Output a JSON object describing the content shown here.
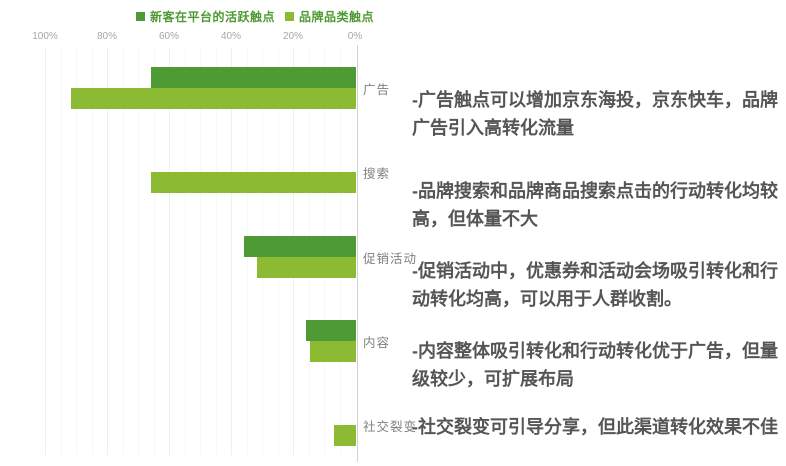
{
  "legend": {
    "items": [
      {
        "label": "新客在平台的活跃触点",
        "color": "#4e9a34"
      },
      {
        "label": "品牌品类触点",
        "color": "#8cbb33"
      }
    ],
    "text_color": "#4e9a34"
  },
  "chart_data": {
    "type": "bar",
    "orientation": "horizontal",
    "title": "",
    "xlabel": "",
    "ylabel": "",
    "axis": {
      "tick_labels": [
        "100%",
        "80%",
        "60%",
        "40%",
        "20%",
        "0%"
      ],
      "min": 0,
      "max": 100,
      "direction": "right-to-left",
      "grid": "on",
      "unit": "%"
    },
    "categories": [
      "广告",
      "搜索",
      "促销活动",
      "内容",
      "社交裂变"
    ],
    "series": [
      {
        "name": "新客在平台的活跃触点",
        "color": "#4e9a34",
        "values": [
          66,
          0,
          36,
          16,
          0
        ]
      },
      {
        "name": "品牌品类触点",
        "color": "#8cbb33",
        "values": [
          92,
          66,
          32,
          15,
          7
        ]
      }
    ],
    "legend_position": "top"
  },
  "annotations": [
    {
      "text": "-广告触点可以增加京东海投，京东快车，品牌广告引入高转化流量"
    },
    {
      "text": "-品牌搜索和品牌商品搜索点击的行动转化均较高，但体量不大"
    },
    {
      "text": "-促销活动中，优惠券和活动会场吸引转化和行动转化均高，可以用于人群收割。"
    },
    {
      "text": "-内容整体吸引转化和行动转化优于广告，但量级较少，可扩展布局"
    },
    {
      "text": "-社交裂变可引导分享，但此渠道转化效果不佳"
    }
  ]
}
